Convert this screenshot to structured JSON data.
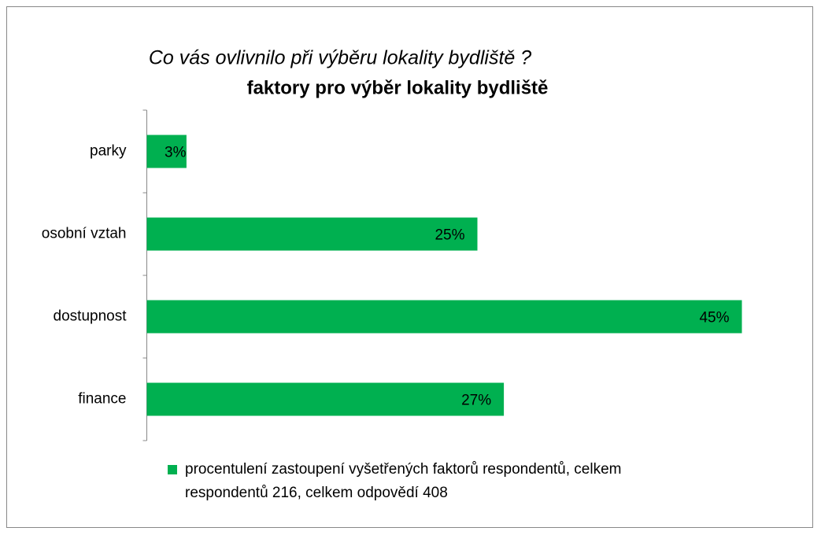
{
  "chart_data": {
    "type": "bar",
    "orientation": "horizontal",
    "title": "Co vás ovlivnilo při výběru lokality bydliště ?",
    "subtitle": "faktory pro výběr lokality bydliště",
    "categories": [
      "parky",
      "osobní vztah",
      "dostupnost",
      "finance"
    ],
    "series": [
      {
        "name": "procentulení zastoupení vyšetřených faktorů respondentů, celkem respondentů 216, celkem odpovědí 408",
        "color": "#00b050",
        "values": [
          3,
          25,
          45,
          27
        ],
        "value_labels": [
          "3%",
          "25%",
          "45%",
          "27%"
        ]
      }
    ],
    "xlim": [
      0,
      50
    ]
  }
}
